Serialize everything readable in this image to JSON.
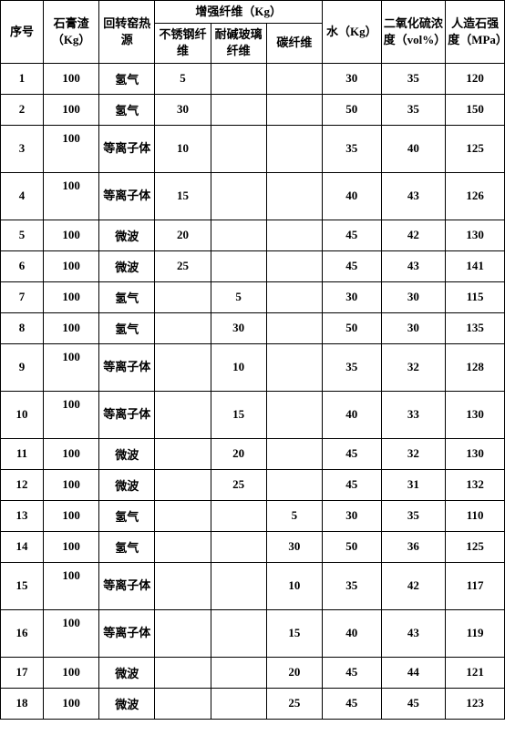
{
  "headers": {
    "seq": "序号",
    "gypsum": "石膏渣（Kg）",
    "heatSource": "回转窑热源",
    "fiberGroup": "增强纤维（Kg）",
    "fiber1": "不锈钢纤维",
    "fiber2": "耐碱玻璃纤维",
    "fiber3": "碳纤维",
    "water": "水（Kg）",
    "so2": "二氧化硫浓度（vol%）",
    "strength": "人造石强度（MPa）"
  },
  "rows": [
    {
      "seq": "1",
      "gypsum": "100",
      "heat": "氢气",
      "f1": "5",
      "f2": "",
      "f3": "",
      "water": "30",
      "so2": "35",
      "strength": "120",
      "tall": false
    },
    {
      "seq": "2",
      "gypsum": "100",
      "heat": "氢气",
      "f1": "30",
      "f2": "",
      "f3": "",
      "water": "50",
      "so2": "35",
      "strength": "150",
      "tall": false
    },
    {
      "seq": "3",
      "gypsum": "100",
      "heat": "等离子体",
      "f1": "10",
      "f2": "",
      "f3": "",
      "water": "35",
      "so2": "40",
      "strength": "125",
      "tall": true
    },
    {
      "seq": "4",
      "gypsum": "100",
      "heat": "等离子体",
      "f1": "15",
      "f2": "",
      "f3": "",
      "water": "40",
      "so2": "43",
      "strength": "126",
      "tall": true
    },
    {
      "seq": "5",
      "gypsum": "100",
      "heat": "微波",
      "f1": "20",
      "f2": "",
      "f3": "",
      "water": "45",
      "so2": "42",
      "strength": "130",
      "tall": false
    },
    {
      "seq": "6",
      "gypsum": "100",
      "heat": "微波",
      "f1": "25",
      "f2": "",
      "f3": "",
      "water": "45",
      "so2": "43",
      "strength": "141",
      "tall": false
    },
    {
      "seq": "7",
      "gypsum": "100",
      "heat": "氢气",
      "f1": "",
      "f2": "5",
      "f3": "",
      "water": "30",
      "so2": "30",
      "strength": "115",
      "tall": false
    },
    {
      "seq": "8",
      "gypsum": "100",
      "heat": "氢气",
      "f1": "",
      "f2": "30",
      "f3": "",
      "water": "50",
      "so2": "30",
      "strength": "135",
      "tall": false
    },
    {
      "seq": "9",
      "gypsum": "100",
      "heat": "等离子体",
      "f1": "",
      "f2": "10",
      "f3": "",
      "water": "35",
      "so2": "32",
      "strength": "128",
      "tall": true
    },
    {
      "seq": "10",
      "gypsum": "100",
      "heat": "等离子体",
      "f1": "",
      "f2": "15",
      "f3": "",
      "water": "40",
      "so2": "33",
      "strength": "130",
      "tall": true
    },
    {
      "seq": "11",
      "gypsum": "100",
      "heat": "微波",
      "f1": "",
      "f2": "20",
      "f3": "",
      "water": "45",
      "so2": "32",
      "strength": "130",
      "tall": false
    },
    {
      "seq": "12",
      "gypsum": "100",
      "heat": "微波",
      "f1": "",
      "f2": "25",
      "f3": "",
      "water": "45",
      "so2": "31",
      "strength": "132",
      "tall": false
    },
    {
      "seq": "13",
      "gypsum": "100",
      "heat": "氢气",
      "f1": "",
      "f2": "",
      "f3": "5",
      "water": "30",
      "so2": "35",
      "strength": "110",
      "tall": false
    },
    {
      "seq": "14",
      "gypsum": "100",
      "heat": "氢气",
      "f1": "",
      "f2": "",
      "f3": "30",
      "water": "50",
      "so2": "36",
      "strength": "125",
      "tall": false
    },
    {
      "seq": "15",
      "gypsum": "100",
      "heat": "等离子体",
      "f1": "",
      "f2": "",
      "f3": "10",
      "water": "35",
      "so2": "42",
      "strength": "117",
      "tall": true
    },
    {
      "seq": "16",
      "gypsum": "100",
      "heat": "等离子体",
      "f1": "",
      "f2": "",
      "f3": "15",
      "water": "40",
      "so2": "43",
      "strength": "119",
      "tall": true
    },
    {
      "seq": "17",
      "gypsum": "100",
      "heat": "微波",
      "f1": "",
      "f2": "",
      "f3": "20",
      "water": "45",
      "so2": "44",
      "strength": "121",
      "tall": false
    },
    {
      "seq": "18",
      "gypsum": "100",
      "heat": "微波",
      "f1": "",
      "f2": "",
      "f3": "25",
      "water": "45",
      "so2": "45",
      "strength": "123",
      "tall": false
    }
  ],
  "style": {
    "backgroundColor": "#ffffff",
    "borderColor": "#000000",
    "fontSize": 13,
    "fontWeight": "bold",
    "fontFamily": "SimSun"
  }
}
